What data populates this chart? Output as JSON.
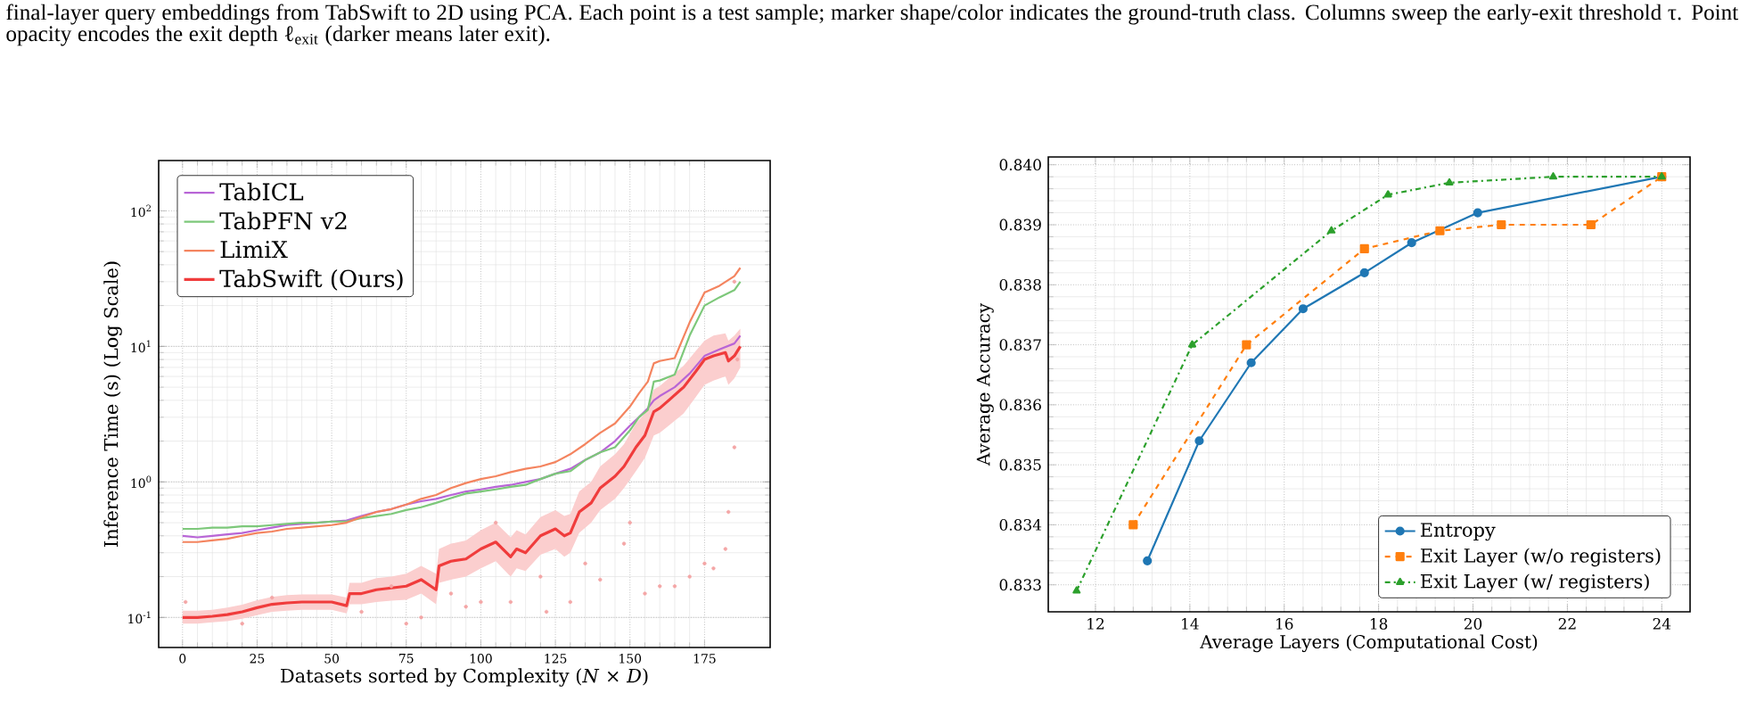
{
  "chart_data": [
    {
      "type": "line",
      "xlabel": "Datasets sorted by Complexity (*N* × *D*)",
      "ylabel": "Inference Time (s) (Log Scale)",
      "annotations": [
        "final-layer query embeddings from TabSwift to 2D using PCA. Each point is a test sample; marker shape/color indicates the ground-truth class. Columns sweep the early-exit threshold τ. Point opacity encodes the exit depth ℓ$_{exit}$ (darker means later exit)."
      ],
      "log": "y",
      "grid": true,
      "legend": "top left",
      "marker": "none",
      "line_style": "solid",
      "xlim": [
        -8,
        197
      ],
      "ylim": [
        0.06,
        235
      ],
      "xticks": [
        0,
        25,
        50,
        75,
        100,
        125,
        150,
        175
      ],
      "yticks": [
        {
          "value": 0.1,
          "label": "10$^{-1}$"
        },
        {
          "value": 1,
          "label": "10$^{0}$"
        },
        {
          "value": 10,
          "label": "10$^{1}$"
        },
        {
          "value": 100,
          "label": "10$^{2}$"
        }
      ],
      "series": [
        {
          "type": "scatter",
          "color": "#f4a6a6",
          "x": [
            1,
            20,
            30,
            60,
            70,
            75,
            80,
            90,
            95,
            100,
            105,
            110,
            120,
            122,
            130,
            135,
            140,
            148,
            150,
            155,
            160,
            165,
            170,
            175,
            178,
            182,
            183,
            185,
            186,
            185
          ],
          "values": [
            0.13,
            0.09,
            0.14,
            0.11,
            0.17,
            0.09,
            0.1,
            0.15,
            0.12,
            0.13,
            0.5,
            0.13,
            0.2,
            0.11,
            0.13,
            0.25,
            0.19,
            0.35,
            0.5,
            0.15,
            0.17,
            0.17,
            0.2,
            0.25,
            0.23,
            0.32,
            0.6,
            1.8,
            8,
            30
          ]
        },
        {
          "name": "TabICL",
          "color": "#b865d6",
          "x": [
            0,
            5,
            10,
            15,
            20,
            25,
            30,
            35,
            40,
            45,
            50,
            55,
            60,
            65,
            70,
            75,
            80,
            85,
            90,
            95,
            100,
            105,
            110,
            115,
            120,
            125,
            130,
            135,
            140,
            145,
            150,
            153,
            156,
            158,
            160,
            165,
            170,
            175,
            180,
            185,
            187
          ],
          "values": [
            0.4,
            0.39,
            0.4,
            0.41,
            0.42,
            0.44,
            0.46,
            0.48,
            0.49,
            0.5,
            0.51,
            0.52,
            0.56,
            0.6,
            0.63,
            0.68,
            0.72,
            0.75,
            0.8,
            0.85,
            0.88,
            0.92,
            0.95,
            1.0,
            1.05,
            1.15,
            1.25,
            1.45,
            1.65,
            2.0,
            2.6,
            3.0,
            3.5,
            4.0,
            4.3,
            5.0,
            6.3,
            8.5,
            9.5,
            10.5,
            12
          ]
        },
        {
          "name": "TabPFN v2",
          "color": "#7dc87a",
          "x": [
            0,
            5,
            10,
            15,
            20,
            25,
            30,
            35,
            40,
            45,
            50,
            55,
            60,
            65,
            70,
            75,
            80,
            85,
            90,
            95,
            100,
            105,
            110,
            115,
            120,
            125,
            130,
            135,
            140,
            145,
            150,
            153,
            156,
            158,
            160,
            165,
            170,
            175,
            180,
            185,
            187
          ],
          "values": [
            0.45,
            0.45,
            0.46,
            0.46,
            0.47,
            0.47,
            0.48,
            0.49,
            0.5,
            0.5,
            0.51,
            0.51,
            0.54,
            0.56,
            0.58,
            0.62,
            0.65,
            0.7,
            0.76,
            0.82,
            0.85,
            0.88,
            0.92,
            0.95,
            1.05,
            1.15,
            1.2,
            1.45,
            1.65,
            1.8,
            2.4,
            3.0,
            3.4,
            5.5,
            5.6,
            6.2,
            12,
            20,
            23,
            26,
            30
          ]
        },
        {
          "name": "LimiX",
          "color": "#f4845f",
          "x": [
            0,
            5,
            10,
            15,
            20,
            25,
            30,
            35,
            40,
            45,
            50,
            55,
            60,
            65,
            70,
            75,
            80,
            85,
            90,
            95,
            100,
            105,
            110,
            115,
            120,
            125,
            130,
            135,
            140,
            145,
            150,
            153,
            156,
            158,
            160,
            165,
            170,
            175,
            180,
            185,
            187
          ],
          "values": [
            0.36,
            0.36,
            0.37,
            0.38,
            0.4,
            0.42,
            0.43,
            0.45,
            0.46,
            0.47,
            0.48,
            0.5,
            0.55,
            0.6,
            0.63,
            0.68,
            0.75,
            0.8,
            0.9,
            0.98,
            1.05,
            1.1,
            1.18,
            1.25,
            1.3,
            1.4,
            1.6,
            1.9,
            2.3,
            2.7,
            3.6,
            4.5,
            5.5,
            7.5,
            7.8,
            8.2,
            15,
            25,
            28,
            33,
            38
          ]
        },
        {
          "name": "TabSwift (Ours)",
          "color": "#f03c3c",
          "x": [
            0,
            5,
            10,
            15,
            20,
            25,
            30,
            35,
            40,
            45,
            50,
            55,
            56,
            60,
            65,
            70,
            75,
            80,
            85,
            86,
            90,
            95,
            100,
            105,
            110,
            112,
            115,
            120,
            125,
            128,
            130,
            133,
            137,
            140,
            145,
            148,
            152,
            155,
            158,
            160,
            163,
            168,
            172,
            175,
            178,
            182,
            183,
            185,
            187
          ],
          "values": [
            0.1,
            0.1,
            0.102,
            0.105,
            0.11,
            0.118,
            0.125,
            0.128,
            0.13,
            0.13,
            0.13,
            0.122,
            0.15,
            0.15,
            0.16,
            0.165,
            0.17,
            0.19,
            0.16,
            0.24,
            0.26,
            0.27,
            0.32,
            0.36,
            0.28,
            0.32,
            0.3,
            0.4,
            0.45,
            0.4,
            0.42,
            0.6,
            0.7,
            0.9,
            1.1,
            1.3,
            1.8,
            2.2,
            3.3,
            3.5,
            4.0,
            5.0,
            6.5,
            8.0,
            8.5,
            9.0,
            7.8,
            8.5,
            10
          ],
          "lower": [
            0.09,
            0.09,
            0.092,
            0.094,
            0.098,
            0.104,
            0.11,
            0.112,
            0.114,
            0.114,
            0.114,
            0.107,
            0.125,
            0.125,
            0.13,
            0.133,
            0.135,
            0.15,
            0.125,
            0.18,
            0.19,
            0.2,
            0.23,
            0.26,
            0.2,
            0.23,
            0.22,
            0.29,
            0.32,
            0.28,
            0.3,
            0.42,
            0.5,
            0.62,
            0.75,
            0.9,
            1.2,
            1.5,
            2.2,
            2.3,
            2.6,
            3.2,
            4.2,
            5.2,
            5.6,
            6.0,
            5.2,
            5.8,
            7.0
          ],
          "upper": [
            0.112,
            0.112,
            0.114,
            0.118,
            0.124,
            0.134,
            0.142,
            0.146,
            0.148,
            0.148,
            0.148,
            0.14,
            0.18,
            0.18,
            0.195,
            0.2,
            0.21,
            0.24,
            0.21,
            0.32,
            0.35,
            0.37,
            0.44,
            0.5,
            0.39,
            0.44,
            0.41,
            0.55,
            0.62,
            0.56,
            0.58,
            0.85,
            1.0,
            1.3,
            1.6,
            1.9,
            2.7,
            3.2,
            4.8,
            5.1,
            5.8,
            7.2,
            9.2,
            11,
            12,
            12.5,
            11,
            12,
            13.5
          ]
        }
      ]
    },
    {
      "type": "line",
      "xlabel": "Average Layers (Computational Cost)",
      "ylabel": "Average Accuracy",
      "grid": true,
      "legend": "bottom right",
      "xlim": [
        11.0,
        24.6
      ],
      "ylim": [
        0.83255,
        0.84013
      ],
      "xticks": [
        12,
        14,
        16,
        18,
        20,
        22,
        24
      ],
      "yticks": [
        {
          "value": 0.833,
          "label": "0.833"
        },
        {
          "value": 0.834,
          "label": "0.834"
        },
        {
          "value": 0.835,
          "label": "0.835"
        },
        {
          "value": 0.836,
          "label": "0.836"
        },
        {
          "value": 0.837,
          "label": "0.837"
        },
        {
          "value": 0.838,
          "label": "0.838"
        },
        {
          "value": 0.839,
          "label": "0.839"
        },
        {
          "value": 0.84,
          "label": "0.840"
        }
      ],
      "series": [
        {
          "name": "Entropy",
          "color": "#1f77b4",
          "marker": "circle",
          "line_style": "solid",
          "x": [
            13.1,
            14.2,
            15.3,
            16.4,
            17.7,
            18.7,
            20.1,
            24.0
          ],
          "values": [
            0.8334,
            0.8354,
            0.8367,
            0.8376,
            0.8382,
            0.8387,
            0.8392,
            0.8398
          ]
        },
        {
          "name": "Exit Layer (w/o registers)",
          "color": "#ff7f0e",
          "marker": "square",
          "line_style": "dashed",
          "x": [
            12.8,
            15.2,
            17.7,
            19.3,
            20.6,
            22.5,
            24.0
          ],
          "values": [
            0.834,
            0.837,
            0.8386,
            0.8389,
            0.839,
            0.839,
            0.8398
          ]
        },
        {
          "name": "Exit Layer (w/ registers)",
          "color": "#2ca02c",
          "marker": "triangle",
          "line_style": "dashdot",
          "x": [
            11.6,
            14.05,
            17.0,
            18.2,
            19.5,
            21.7,
            24.0
          ],
          "values": [
            0.8329,
            0.837,
            0.8389,
            0.8395,
            0.8397,
            0.8398,
            0.8398
          ]
        }
      ]
    }
  ]
}
